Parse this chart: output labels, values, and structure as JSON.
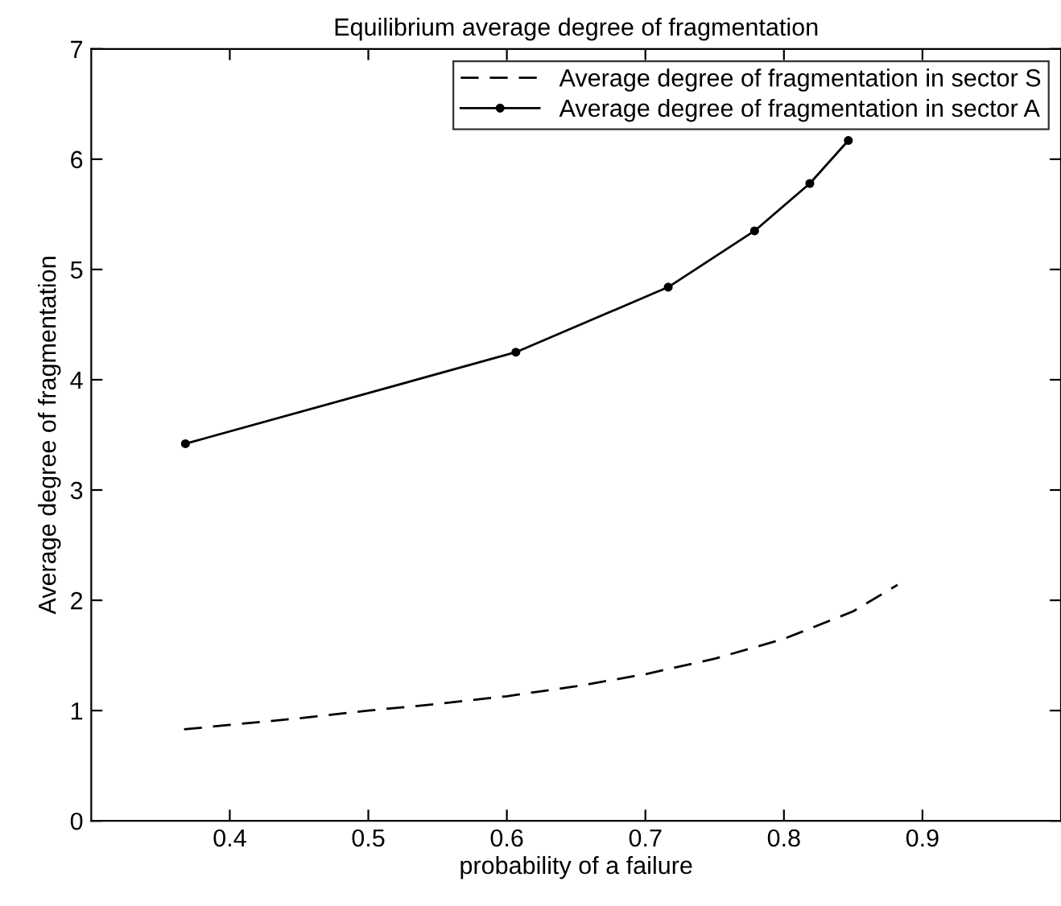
{
  "chart_data": {
    "type": "line",
    "title": "Equilibrium average degree of fragmentation",
    "xlabel": "probability of a failure",
    "ylabel": "Average degree of fragmentation",
    "xlim": [
      0.3,
      1.0
    ],
    "xticks": [
      0.4,
      0.5,
      0.6,
      0.7,
      0.8,
      0.9
    ],
    "ylim": [
      0,
      7
    ],
    "yticks": [
      0,
      1,
      2,
      3,
      4,
      5,
      6,
      7
    ],
    "grid": false,
    "legend": "top right",
    "series": [
      {
        "name": "Average degree of fragmentation in sector S",
        "color": "#000000",
        "line_style": "dashed",
        "marker": "none",
        "x": [
          0.367,
          0.4,
          0.45,
          0.5,
          0.55,
          0.6,
          0.65,
          0.7,
          0.75,
          0.8,
          0.85,
          0.882
        ],
        "values": [
          0.83,
          0.87,
          0.93,
          1.0,
          1.06,
          1.13,
          1.22,
          1.33,
          1.47,
          1.65,
          1.9,
          2.14
        ]
      },
      {
        "name": "Average degree of fragmentation in sector A",
        "color": "#000000",
        "line_style": "solid",
        "marker": "circle",
        "x": [
          0.368,
          0.6065,
          0.7165,
          0.7788,
          0.8187,
          0.8465
        ],
        "values": [
          3.42,
          4.25,
          4.84,
          5.35,
          5.78,
          6.17
        ]
      }
    ]
  }
}
